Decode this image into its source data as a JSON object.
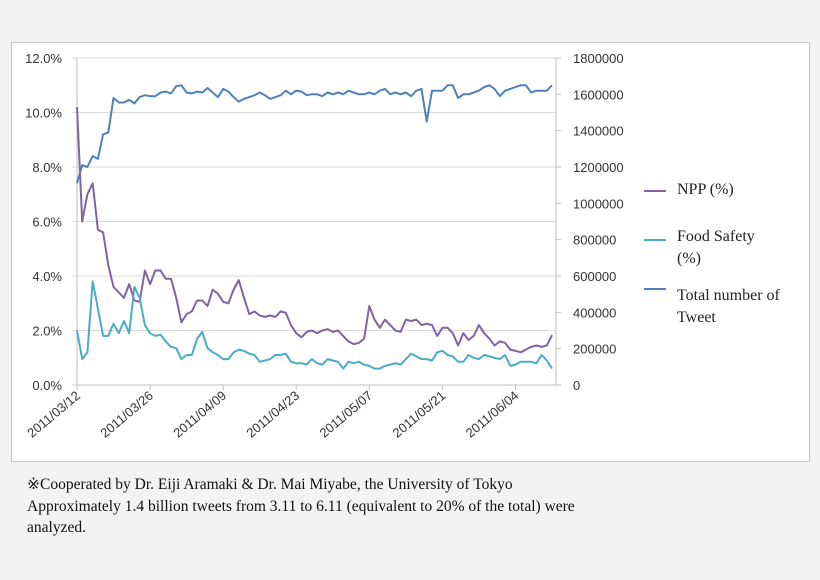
{
  "chart_data": {
    "type": "line",
    "title": "",
    "x_start": "2011/03/12",
    "x_tick_labels": [
      "2011/03/12",
      "2011/03/26",
      "2011/04/09",
      "2011/04/23",
      "2011/05/07",
      "2011/05/21",
      "2011/06/04"
    ],
    "x_step": "1 day",
    "left_axis": {
      "ylim": [
        0,
        12
      ],
      "tick_labels": [
        "0.0%",
        "2.0%",
        "4.0%",
        "6.0%",
        "8.0%",
        "10.0%",
        "12.0%"
      ]
    },
    "right_axis": {
      "ylim": [
        0,
        1800000
      ],
      "tick_labels": [
        "0",
        "200000",
        "400000",
        "600000",
        "800000",
        "1000000",
        "1200000",
        "1400000",
        "1600000",
        "1800000"
      ]
    },
    "grid": "horizontal",
    "legend_position": "right",
    "series": [
      {
        "name": "NPP (%)",
        "axis": "left",
        "color": "#8064a2",
        "values": [
          10.2,
          6.0,
          7.0,
          7.4,
          5.7,
          5.6,
          4.4,
          3.6,
          3.4,
          3.2,
          3.7,
          3.1,
          3.05,
          4.2,
          3.7,
          4.2,
          4.2,
          3.9,
          3.9,
          3.2,
          2.3,
          2.6,
          2.7,
          3.1,
          3.1,
          2.9,
          3.5,
          3.35,
          3.05,
          3.0,
          3.5,
          3.85,
          3.2,
          2.6,
          2.7,
          2.55,
          2.5,
          2.55,
          2.5,
          2.7,
          2.65,
          2.2,
          1.9,
          1.75,
          1.95,
          2.0,
          1.9,
          2.0,
          2.05,
          1.95,
          2.0,
          1.8,
          1.6,
          1.5,
          1.55,
          1.7,
          2.9,
          2.4,
          2.1,
          2.4,
          2.2,
          2.0,
          1.95,
          2.4,
          2.35,
          2.4,
          2.2,
          2.25,
          2.2,
          1.8,
          2.1,
          2.1,
          1.9,
          1.45,
          1.9,
          1.65,
          1.8,
          2.2,
          1.9,
          1.7,
          1.45,
          1.6,
          1.55,
          1.3,
          1.25,
          1.2,
          1.3,
          1.4,
          1.45,
          1.4,
          1.45,
          1.83
        ]
      },
      {
        "name": "Food Safety (%)",
        "axis": "left",
        "color": "#4bacc6",
        "values": [
          2.0,
          0.95,
          1.2,
          3.8,
          2.8,
          1.8,
          1.8,
          2.25,
          1.9,
          2.35,
          1.9,
          3.6,
          3.2,
          2.2,
          1.9,
          1.8,
          1.85,
          1.6,
          1.4,
          1.35,
          0.95,
          1.1,
          1.1,
          1.7,
          1.95,
          1.35,
          1.2,
          1.1,
          0.95,
          0.95,
          1.2,
          1.3,
          1.25,
          1.15,
          1.1,
          0.85,
          0.9,
          0.95,
          1.1,
          1.1,
          1.15,
          0.85,
          0.8,
          0.8,
          0.75,
          0.95,
          0.8,
          0.75,
          0.95,
          0.9,
          0.85,
          0.6,
          0.85,
          0.8,
          0.85,
          0.75,
          0.7,
          0.6,
          0.6,
          0.7,
          0.75,
          0.8,
          0.75,
          0.95,
          1.15,
          1.05,
          0.95,
          0.95,
          0.9,
          1.2,
          1.25,
          1.1,
          1.05,
          0.85,
          0.85,
          1.1,
          1.0,
          0.95,
          1.1,
          1.05,
          1.0,
          0.95,
          1.1,
          0.7,
          0.75,
          0.85,
          0.85,
          0.85,
          0.8,
          1.1,
          0.9,
          0.6
        ]
      },
      {
        "name": "Total number of Tweet",
        "axis": "right",
        "color": "#4f81bd",
        "values": [
          1110000,
          1210000,
          1200000,
          1260000,
          1245000,
          1380000,
          1390000,
          1580000,
          1555000,
          1555000,
          1570000,
          1550000,
          1585000,
          1595000,
          1590000,
          1590000,
          1610000,
          1615000,
          1605000,
          1645000,
          1650000,
          1610000,
          1605000,
          1615000,
          1610000,
          1635000,
          1610000,
          1585000,
          1630000,
          1615000,
          1585000,
          1560000,
          1575000,
          1585000,
          1595000,
          1610000,
          1595000,
          1575000,
          1585000,
          1595000,
          1620000,
          1600000,
          1620000,
          1615000,
          1595000,
          1600000,
          1600000,
          1590000,
          1610000,
          1600000,
          1610000,
          1600000,
          1620000,
          1610000,
          1600000,
          1600000,
          1610000,
          1600000,
          1620000,
          1630000,
          1600000,
          1610000,
          1600000,
          1610000,
          1590000,
          1620000,
          1630000,
          1450000,
          1620000,
          1620000,
          1620000,
          1650000,
          1650000,
          1580000,
          1600000,
          1600000,
          1610000,
          1620000,
          1640000,
          1650000,
          1630000,
          1590000,
          1620000,
          1630000,
          1640000,
          1650000,
          1650000,
          1610000,
          1620000,
          1620000,
          1620000,
          1650000
        ]
      }
    ]
  },
  "legend": {
    "npp": [
      "NPP (%)"
    ],
    "food": [
      "Food Safety",
      "(%)"
    ],
    "total": [
      "Total number of",
      "Tweet"
    ]
  },
  "footer": {
    "line1": "※Cooperated by Dr. Eiji Aramaki & Dr. Mai Miyabe, the University of Tokyo",
    "line2": "Approximately 1.4 billion tweets from 3.11 to 6.11 (equivalent to 20% of the total) were",
    "line3": "analyzed."
  }
}
